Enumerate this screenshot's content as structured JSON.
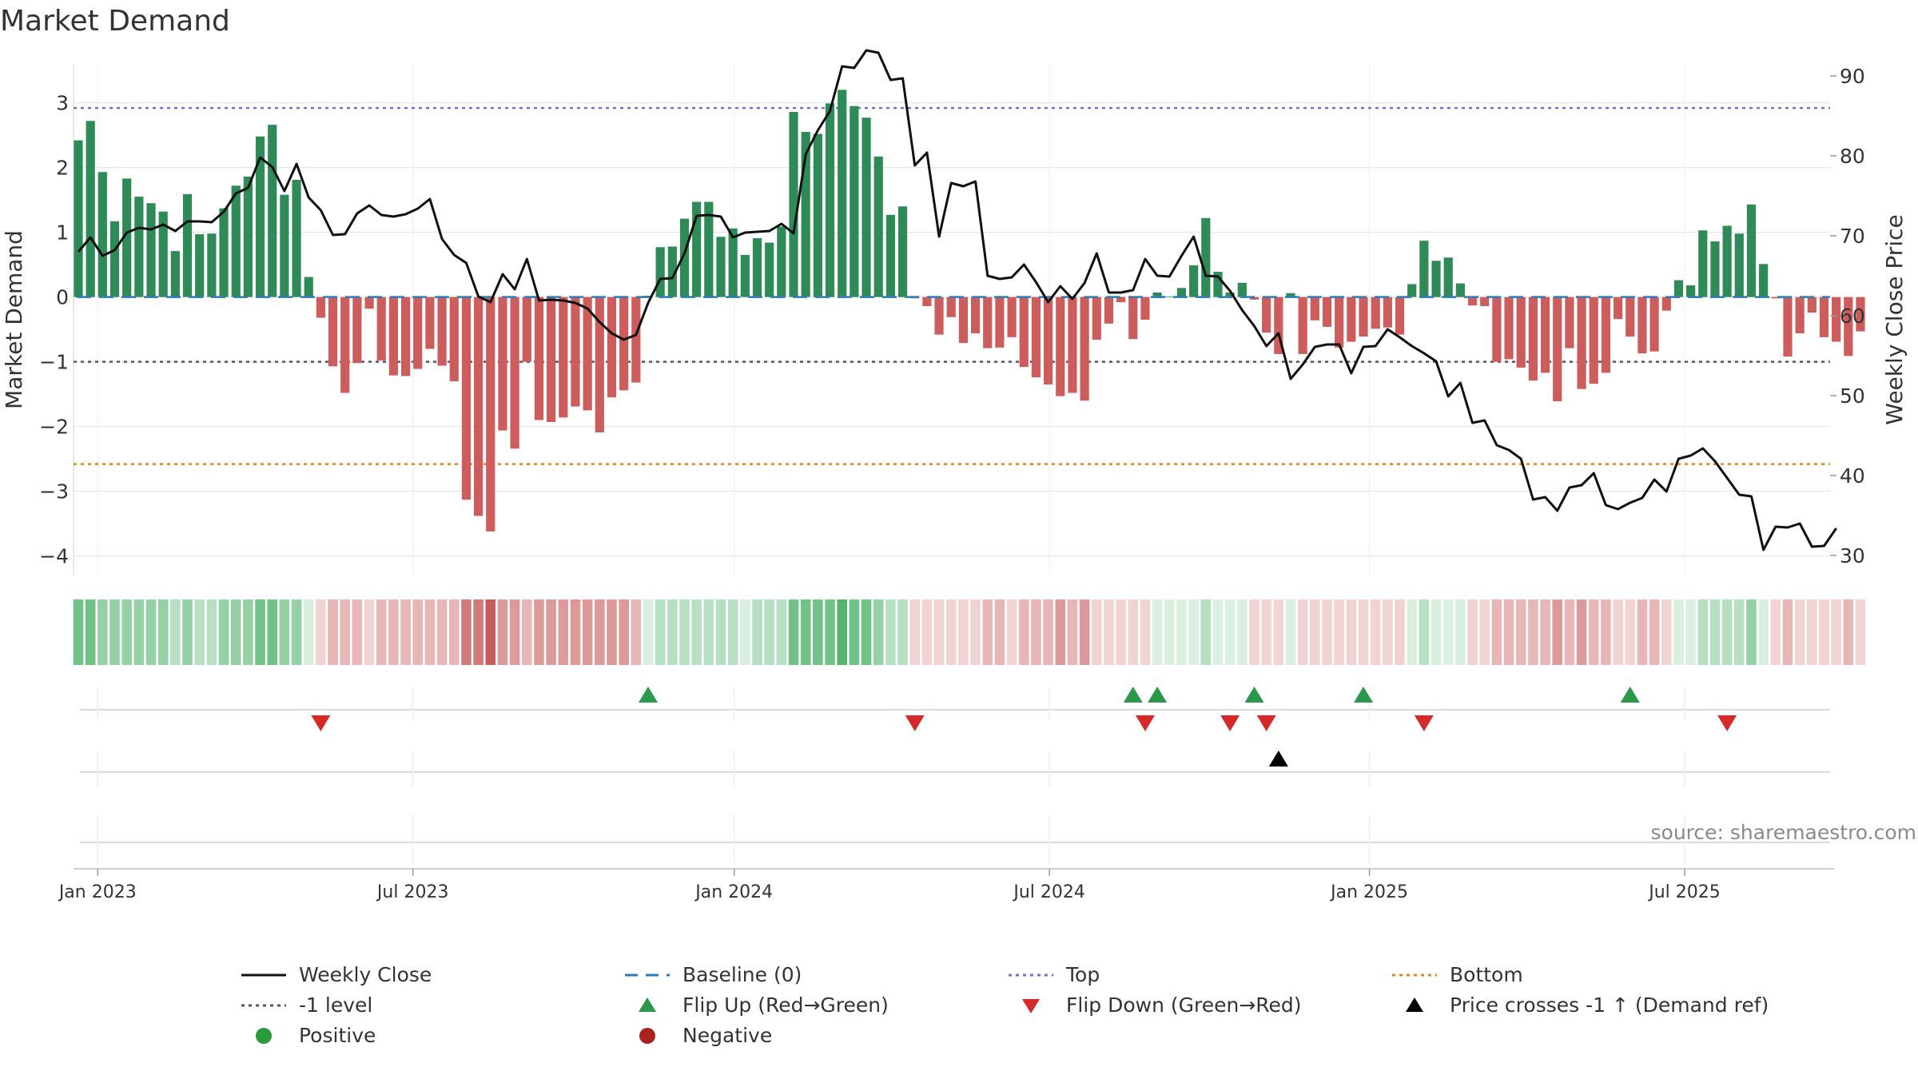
{
  "chart_data": {
    "type": "bar",
    "title": "Market Demand",
    "ylabel": "Market Demand",
    "y2label": "Weekly Close Price",
    "ylim": [
      -4.3,
      3.6
    ],
    "y2lim": [
      27.5,
      91.5
    ],
    "yticks": [
      3,
      2,
      1,
      0,
      -1,
      -2,
      -3,
      -4
    ],
    "y2ticks": [
      90,
      80,
      70,
      60,
      50,
      40,
      30
    ],
    "ytick_labels": [
      "3",
      "2",
      "1",
      "0",
      "−1",
      "−2",
      "−3",
      "−4"
    ],
    "y2tick_labels": [
      "90",
      "80",
      "70",
      "60",
      "50",
      "40",
      "30"
    ],
    "x_ticks": [
      {
        "label": "Jan 2023",
        "week": 1.6
      },
      {
        "label": "Jul 2023",
        "week": 27.6
      },
      {
        "label": "Jan 2024",
        "week": 54.1
      },
      {
        "label": "Jul 2024",
        "week": 80.1
      },
      {
        "label": "Jan 2025",
        "week": 106.5
      },
      {
        "label": "Jul 2025",
        "week": 132.5
      }
    ],
    "reference_lines": {
      "top": 2.92,
      "bottom": -2.58,
      "minus_one": -1.0,
      "baseline": 0
    },
    "demand": [
      2.42,
      2.72,
      1.93,
      1.17,
      1.83,
      1.55,
      1.45,
      1.32,
      0.71,
      1.59,
      0.97,
      0.98,
      1.37,
      1.72,
      1.86,
      2.48,
      2.66,
      1.58,
      1.81,
      0.31,
      -0.32,
      -1.07,
      -1.48,
      -1.02,
      -0.18,
      -0.98,
      -1.21,
      -1.22,
      -1.11,
      -0.8,
      -1.06,
      -1.3,
      -3.13,
      -3.38,
      -3.62,
      -2.06,
      -2.34,
      -1.0,
      -1.9,
      -1.93,
      -1.86,
      -1.69,
      -1.75,
      -2.09,
      -1.55,
      -1.44,
      -1.32,
      0.02,
      0.77,
      0.78,
      1.21,
      1.47,
      1.47,
      0.93,
      1.06,
      0.65,
      0.91,
      0.84,
      1.09,
      2.86,
      2.55,
      2.52,
      2.99,
      3.2,
      2.95,
      2.77,
      2.17,
      1.27,
      1.4,
      -0.02,
      -0.14,
      -0.58,
      -0.31,
      -0.71,
      -0.56,
      -0.79,
      -0.78,
      -0.62,
      -1.08,
      -1.24,
      -1.35,
      -1.53,
      -1.48,
      -1.6,
      -0.66,
      -0.41,
      -0.08,
      -0.65,
      -0.35,
      0.07,
      0.01,
      0.14,
      0.49,
      1.22,
      0.39,
      0.07,
      0.22,
      -0.04,
      -0.55,
      -0.88,
      0.06,
      -0.88,
      -0.36,
      -0.46,
      -0.78,
      -0.69,
      -0.61,
      -0.49,
      -0.47,
      -0.58,
      0.2,
      0.87,
      0.56,
      0.61,
      0.21,
      -0.13,
      -0.14,
      -1.0,
      -0.96,
      -1.09,
      -1.29,
      -1.17,
      -1.61,
      -0.79,
      -1.42,
      -1.34,
      -1.17,
      -0.34,
      -0.61,
      -0.87,
      -0.84,
      -0.21,
      0.26,
      0.18,
      1.03,
      0.86,
      1.1,
      0.98,
      1.43,
      0.51,
      -0.02,
      -0.92,
      -0.56,
      -0.24,
      -0.62,
      -0.69,
      -0.91,
      -0.53
    ],
    "weekly_close": [
      68.0,
      69.8,
      67.5,
      68.2,
      70.4,
      71.0,
      70.8,
      71.4,
      70.6,
      71.8,
      71.8,
      71.7,
      73.0,
      75.3,
      76.0,
      79.8,
      78.6,
      75.6,
      79.0,
      74.8,
      73.2,
      70.1,
      70.2,
      72.8,
      73.8,
      72.6,
      72.4,
      72.7,
      73.4,
      74.6,
      69.6,
      67.6,
      66.6,
      62.4,
      61.7,
      65.2,
      63.3,
      67.1,
      61.9,
      62.0,
      61.9,
      61.6,
      60.9,
      59.2,
      57.8,
      57.0,
      57.6,
      61.6,
      64.6,
      64.7,
      67.8,
      72.5,
      72.6,
      72.4,
      69.8,
      70.4,
      70.5,
      70.6,
      71.5,
      70.3,
      80.2,
      83.2,
      85.6,
      91.2,
      91.0,
      93.2,
      92.9,
      89.5,
      89.7,
      78.8,
      80.4,
      69.9,
      76.6,
      76.2,
      76.8,
      65.0,
      64.6,
      64.8,
      66.4,
      64.2,
      61.7,
      63.7,
      62.1,
      64.1,
      67.8,
      62.9,
      62.9,
      63.2,
      67.1,
      65.0,
      64.9,
      67.5,
      69.9,
      65.0,
      64.9,
      63.1,
      60.7,
      58.7,
      56.2,
      57.8,
      52.1,
      53.9,
      56.1,
      56.4,
      56.4,
      52.8,
      56.1,
      56.2,
      58.3,
      57.3,
      56.2,
      55.3,
      54.3,
      49.9,
      51.6,
      46.6,
      46.9,
      43.8,
      43.2,
      42.1,
      37.0,
      37.3,
      35.6,
      38.5,
      38.8,
      40.3,
      36.3,
      35.8,
      36.6,
      37.2,
      39.5,
      38.0,
      42.1,
      42.5,
      43.4,
      41.8,
      39.7,
      37.6,
      37.4,
      30.7,
      33.6,
      33.5,
      34.0,
      31.1,
      31.2,
      33.4
    ],
    "heat_levels": [
      4,
      4,
      3,
      3,
      3,
      3,
      3,
      3,
      2,
      3,
      2,
      2,
      3,
      3,
      3,
      4,
      4,
      3,
      3,
      1,
      1,
      2,
      2,
      2,
      1,
      2,
      2,
      2,
      2,
      2,
      2,
      2,
      4,
      4,
      5,
      3,
      3,
      2,
      3,
      3,
      3,
      3,
      3,
      3,
      3,
      3,
      2,
      1,
      2,
      2,
      2,
      2,
      2,
      2,
      2,
      1,
      2,
      2,
      2,
      4,
      4,
      4,
      4,
      5,
      4,
      4,
      3,
      2,
      2,
      1,
      1,
      1,
      1,
      1,
      1,
      2,
      2,
      1,
      2,
      2,
      2,
      3,
      2,
      3,
      1,
      1,
      1,
      1,
      1,
      1,
      1,
      1,
      1,
      2,
      1,
      1,
      1,
      1,
      1,
      1,
      1,
      1,
      1,
      1,
      1,
      1,
      1,
      1,
      1,
      1,
      1,
      2,
      1,
      1,
      1,
      1,
      1,
      2,
      2,
      2,
      2,
      2,
      3,
      2,
      3,
      2,
      2,
      1,
      1,
      2,
      2,
      1,
      1,
      1,
      2,
      2,
      2,
      2,
      3,
      1,
      1,
      2,
      1,
      1,
      1,
      1,
      2,
      1
    ],
    "flip_up_weeks": [
      47,
      87,
      89,
      97,
      106,
      128
    ],
    "flip_down_weeks": [
      20,
      69,
      88,
      95,
      98,
      111,
      136
    ],
    "price_cross_weeks": [
      99
    ],
    "source": "source: sharemaestro.com",
    "legend": [
      {
        "label": "Weekly Close",
        "symbol": "line",
        "color": "#111111"
      },
      {
        "label": "Baseline (0)",
        "symbol": "dash",
        "color": "#2b7bb9"
      },
      {
        "label": "Top",
        "symbol": "dot",
        "color": "#7a6fd0"
      },
      {
        "label": "Bottom",
        "symbol": "dot",
        "color": "#e08a1e"
      },
      {
        "label": "-1 level",
        "symbol": "dot",
        "color": "#555566"
      },
      {
        "label": "Flip Up (Red→Green)",
        "symbol": "tri-up",
        "color": "#2a9a4a"
      },
      {
        "label": "Flip Down (Green→Red)",
        "symbol": "tri-down",
        "color": "#d62a2a"
      },
      {
        "label": "Price crosses -1 ↑ (Demand ref)",
        "symbol": "tri-up",
        "color": "#000000"
      },
      {
        "label": "Positive",
        "symbol": "circle",
        "color": "#2a9a3a"
      },
      {
        "label": "Negative",
        "symbol": "circle",
        "color": "#aa2222"
      }
    ],
    "colors": {
      "positive_bar": "#2e8b57",
      "negative_bar": "#cd5c5c",
      "price_line": "#111111",
      "grid": "#e6e6e6",
      "heat_green": [
        "#d9efdf",
        "#b7e0c2",
        "#95d1a4",
        "#72c186",
        "#57b46c"
      ],
      "heat_red": [
        "#f1d3d3",
        "#e7b6b6",
        "#dc9a9a",
        "#cf7b7b",
        "#c45e5e"
      ]
    }
  }
}
